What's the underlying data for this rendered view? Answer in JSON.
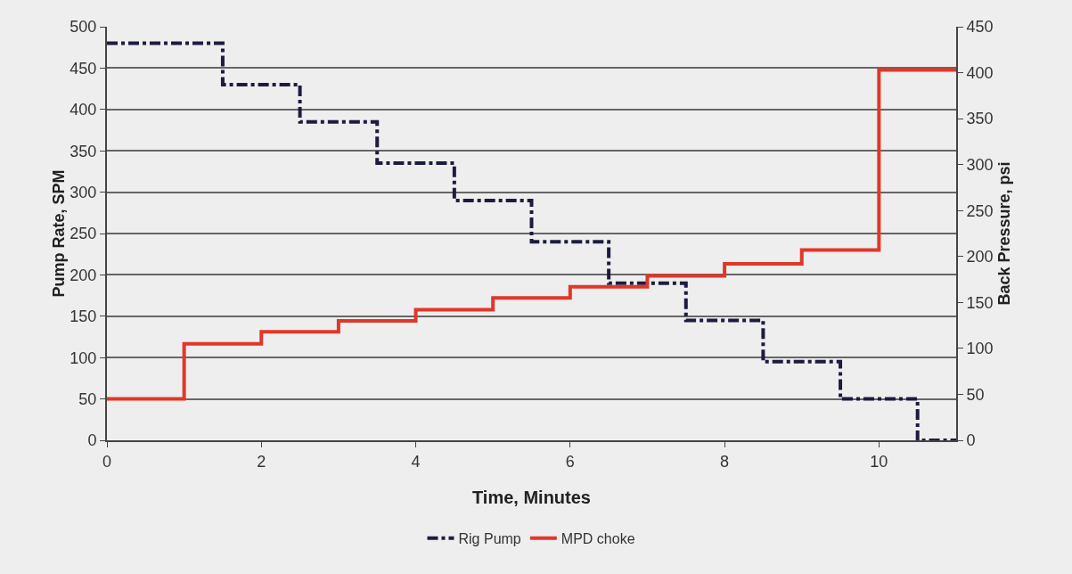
{
  "chart_data": {
    "type": "step",
    "xlabel": "Time, Minutes",
    "ylabel": "Pump Rate, SPM",
    "y2label": "Back Pressure, psi",
    "xlim": [
      0,
      11
    ],
    "xticks": [
      0,
      2,
      4,
      6,
      8,
      10
    ],
    "ylim": [
      0,
      500
    ],
    "yticks": [
      0,
      50,
      100,
      150,
      200,
      250,
      300,
      350,
      400,
      450,
      500
    ],
    "y2lim": [
      0,
      450
    ],
    "y2ticks": [
      0,
      50,
      100,
      150,
      200,
      250,
      300,
      350,
      400,
      450
    ],
    "grid": "y",
    "legend": "bottom",
    "marker": "none",
    "series": [
      {
        "name": "Rig Pump",
        "color": "#1c1c40",
        "line_style": "dashdot",
        "x": [
          0,
          1.5,
          2.5,
          3.5,
          4.5,
          5.5,
          6.5,
          7.5,
          8.5,
          9.5,
          10.5,
          11
        ],
        "values": [
          480,
          430,
          385,
          335,
          290,
          240,
          190,
          145,
          95,
          50,
          0,
          0
        ]
      },
      {
        "name": "MPD choke",
        "color": "#e0372a",
        "line_style": "solid",
        "axis": "y2",
        "x": [
          0,
          1,
          2,
          3,
          4,
          5,
          6,
          7,
          8,
          9,
          10,
          11
        ],
        "values": [
          45,
          105,
          118,
          130,
          142,
          155,
          167,
          179,
          192,
          207,
          403,
          403
        ]
      }
    ]
  }
}
